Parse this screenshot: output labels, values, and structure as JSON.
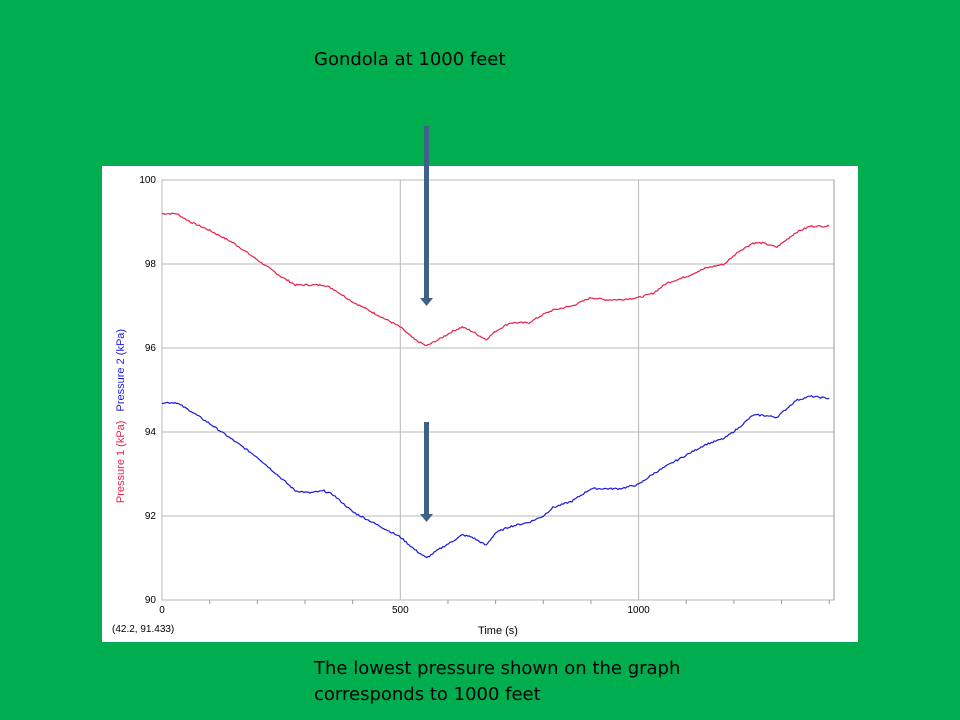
{
  "captions": {
    "top": "Gondola at 1000 feet",
    "bottom": "The lowest pressure shown on the graph corresponds to 1000 feet"
  },
  "colors": {
    "background": "#00ad4f",
    "series1": "#e8204a",
    "series2": "#1a1ad6",
    "arrow": "#3f6188"
  },
  "chart_data": {
    "type": "line",
    "xlabel": "Time (s)",
    "ylabel_parts": [
      {
        "text": "Pressure 1 (kPa)",
        "color": "#e8204a"
      },
      {
        "text": "Pressure 2 (kPa)",
        "color": "#1a1ad6"
      }
    ],
    "xlim": [
      0,
      1410
    ],
    "ylim": [
      90,
      100
    ],
    "x_ticks": [
      0,
      500,
      1000
    ],
    "y_ticks": [
      90,
      92,
      94,
      96,
      98,
      100
    ],
    "grid": true,
    "cursor_readout": "(42.2, 91.433)",
    "series": [
      {
        "name": "Pressure 1 (kPa)",
        "color": "#e8204a",
        "x": [
          0,
          30,
          60,
          100,
          150,
          200,
          250,
          280,
          310,
          340,
          360,
          400,
          450,
          500,
          530,
          555,
          580,
          610,
          630,
          650,
          680,
          700,
          730,
          770,
          800,
          820,
          860,
          900,
          930,
          960,
          1000,
          1030,
          1060,
          1100,
          1140,
          1180,
          1210,
          1240,
          1260,
          1290,
          1330,
          1360,
          1400
        ],
        "y": [
          99.2,
          99.2,
          99.0,
          98.8,
          98.5,
          98.1,
          97.7,
          97.5,
          97.5,
          97.5,
          97.4,
          97.1,
          96.8,
          96.5,
          96.2,
          96.05,
          96.2,
          96.4,
          96.5,
          96.4,
          96.2,
          96.4,
          96.6,
          96.6,
          96.8,
          96.9,
          97.0,
          97.2,
          97.15,
          97.15,
          97.2,
          97.3,
          97.55,
          97.7,
          97.9,
          98.0,
          98.3,
          98.5,
          98.5,
          98.4,
          98.75,
          98.9,
          98.9
        ]
      },
      {
        "name": "Pressure 2 (kPa)",
        "color": "#1a1ad6",
        "x": [
          0,
          30,
          60,
          100,
          150,
          200,
          250,
          280,
          310,
          340,
          360,
          400,
          450,
          500,
          530,
          555,
          580,
          610,
          630,
          650,
          680,
          700,
          730,
          770,
          800,
          820,
          860,
          900,
          930,
          960,
          1000,
          1030,
          1060,
          1100,
          1140,
          1180,
          1210,
          1240,
          1260,
          1290,
          1330,
          1360,
          1400
        ],
        "y": [
          94.7,
          94.7,
          94.5,
          94.2,
          93.8,
          93.4,
          92.9,
          92.6,
          92.55,
          92.6,
          92.5,
          92.1,
          91.8,
          91.5,
          91.2,
          91.0,
          91.2,
          91.4,
          91.55,
          91.5,
          91.3,
          91.6,
          91.75,
          91.85,
          92.0,
          92.2,
          92.35,
          92.65,
          92.65,
          92.65,
          92.75,
          93.0,
          93.2,
          93.45,
          93.7,
          93.85,
          94.1,
          94.4,
          94.4,
          94.35,
          94.75,
          94.85,
          94.8
        ]
      }
    ]
  }
}
